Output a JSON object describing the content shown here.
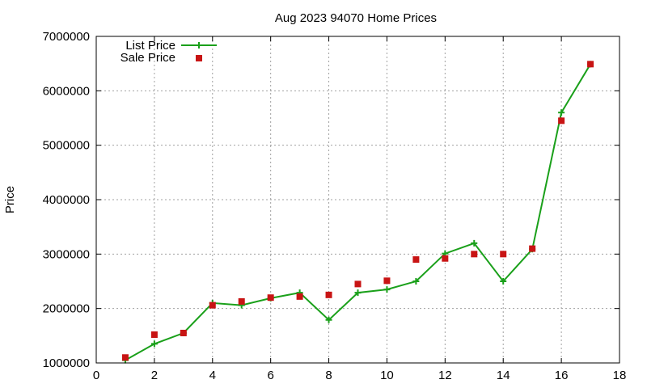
{
  "chart_data": {
    "type": "line",
    "title": "Aug 2023 94070 Home Prices",
    "xlabel": "",
    "ylabel": "Price",
    "xlim": [
      0,
      18
    ],
    "ylim": [
      1000000,
      7000000
    ],
    "xticks": [
      0,
      2,
      4,
      6,
      8,
      10,
      12,
      14,
      16,
      18
    ],
    "xtick_labels": [
      "0",
      "2",
      "4",
      "6",
      "8",
      "10",
      "12",
      "14",
      "16",
      "18"
    ],
    "yticks": [
      1000000,
      2000000,
      3000000,
      4000000,
      5000000,
      6000000,
      7000000
    ],
    "ytick_labels": [
      "1000000",
      "2000000",
      "3000000",
      "4000000",
      "5000000",
      "6000000",
      "7000000"
    ],
    "grid": true,
    "legend_position": "top-left",
    "series": [
      {
        "name": "List Price",
        "style": "line-with-plus-markers",
        "color": "#1aa01a",
        "x": [
          1,
          2,
          3,
          4,
          5,
          6,
          7,
          8,
          9,
          10,
          11,
          12,
          13,
          14,
          15,
          16,
          17
        ],
        "values": [
          1050000,
          1350000,
          1550000,
          2100000,
          2060000,
          2190000,
          2290000,
          1790000,
          2290000,
          2350000,
          2500000,
          3010000,
          3200000,
          2500000,
          3090000,
          5600000,
          6490000
        ]
      },
      {
        "name": "Sale Price",
        "style": "square-markers",
        "color": "#c81414",
        "x": [
          1,
          2,
          3,
          4,
          5,
          6,
          7,
          8,
          9,
          10,
          11,
          12,
          13,
          14,
          15,
          16,
          17
        ],
        "values": [
          1100000,
          1520000,
          1550000,
          2060000,
          2130000,
          2200000,
          2220000,
          2250000,
          2450000,
          2510000,
          2900000,
          2920000,
          3000000,
          3000000,
          3100000,
          5450000,
          6490000
        ]
      }
    ]
  }
}
